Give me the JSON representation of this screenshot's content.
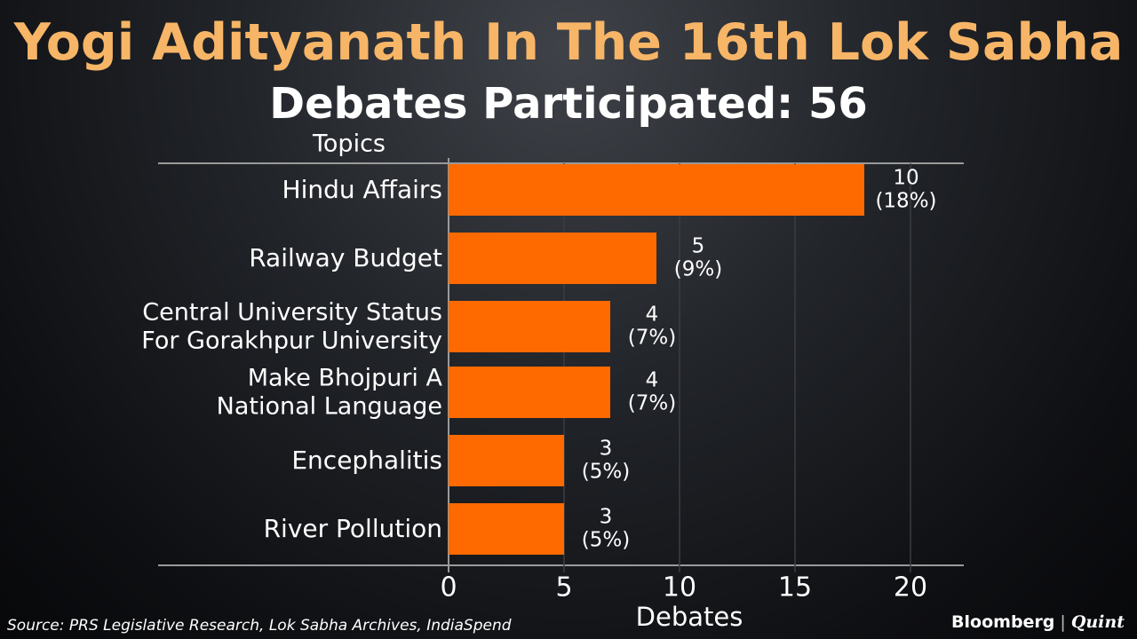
{
  "title": "Yogi Adityanath In The 16th Lok Sabha",
  "subtitle": "Debates Participated: 56",
  "chart_data": {
    "type": "bar",
    "orientation": "horizontal",
    "ylabel": "Topics",
    "xlabel": "Debates",
    "categories": [
      [
        "Hindu Affairs"
      ],
      [
        "Railway Budget"
      ],
      [
        "Central University Status",
        "For Gorakhpur University"
      ],
      [
        "Make Bhojpuri A",
        "National Language"
      ],
      [
        "Encephalitis"
      ],
      [
        "River Pollution"
      ]
    ],
    "values": [
      18,
      9,
      7,
      7,
      5,
      5
    ],
    "value_labels": [
      "10",
      "5",
      "4",
      "4",
      "3",
      "3"
    ],
    "percent_labels": [
      "(18%)",
      "(9%)",
      "(7%)",
      "(7%)",
      "(5%)",
      "(5%)"
    ],
    "xticks": [
      0,
      5,
      10,
      15,
      20
    ],
    "xlim": [
      0,
      22.5
    ],
    "bar_color": "#ff6a00"
  },
  "source": "Source: PRS Legislative Research, Lok Sabha Archives, IndiaSpend",
  "brand": {
    "bloomberg": "Bloomberg",
    "separator": "|",
    "quint": "Quint"
  }
}
